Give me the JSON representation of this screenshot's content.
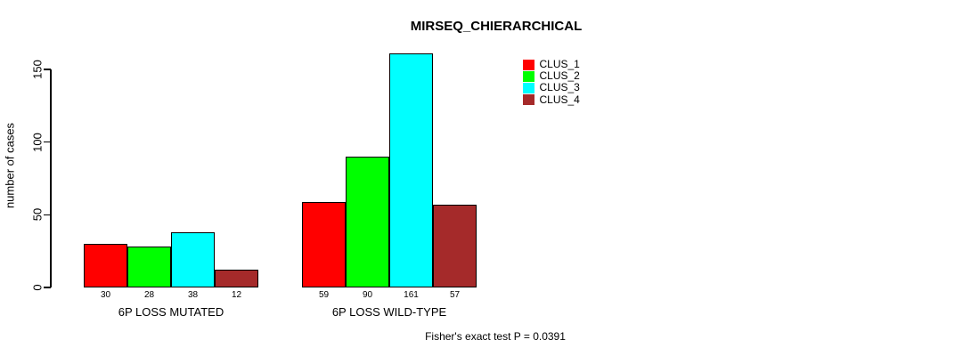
{
  "title": "MIRSEQ_CHIERARCHICAL",
  "chart_data": {
    "type": "bar",
    "title": "MIRSEQ_CHIERARCHICAL",
    "xlabel": "",
    "ylabel": "number of cases",
    "ylim": [
      0,
      165
    ],
    "yticks": [
      0,
      50,
      100,
      150
    ],
    "grid": false,
    "legend_position": "top-right",
    "categories": [
      "6P LOSS MUTATED",
      "6P LOSS WILD-TYPE"
    ],
    "series": [
      {
        "name": "CLUS_1",
        "color": "#ff0000",
        "values": [
          30,
          59
        ]
      },
      {
        "name": "CLUS_2",
        "color": "#00ff00",
        "values": [
          28,
          90
        ]
      },
      {
        "name": "CLUS_3",
        "color": "#00ffff",
        "values": [
          38,
          161
        ]
      },
      {
        "name": "CLUS_4",
        "color": "#a52a2a",
        "values": [
          12,
          57
        ]
      }
    ],
    "bar_value_labels_visible": true,
    "annotation": "Fisher's exact test P = 0.0391"
  },
  "colors": {
    "axis": "#000000",
    "background": "#ffffff",
    "bar_border": "#000000"
  }
}
